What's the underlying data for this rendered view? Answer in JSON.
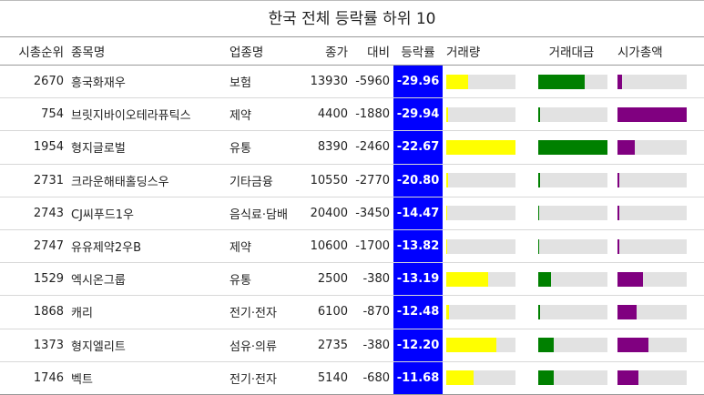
{
  "chart_data": {
    "type": "table",
    "title": "한국 전체 등락률 하위 10",
    "columns": [
      "시총순위",
      "종목명",
      "업종명",
      "종가",
      "대비",
      "등락률",
      "거래량",
      "거래대금",
      "시가총액"
    ],
    "bar_colors": {
      "volume": "#ffff00",
      "amount": "#008000",
      "cap": "#800080"
    },
    "change_bg": "#0000ff",
    "rows": [
      {
        "rank": "2670",
        "name": "흥국화재우",
        "sector": "보험",
        "close": "13930",
        "diff": "-5960",
        "rate": "-29.96",
        "volume": 0.32,
        "amount": 0.67,
        "cap": 0.06
      },
      {
        "rank": "754",
        "name": "브릿지바이오테라퓨틱스",
        "sector": "제약",
        "close": "4400",
        "diff": "-1880",
        "rate": "-29.94",
        "volume": 0.02,
        "amount": 0.02,
        "cap": 1.0
      },
      {
        "rank": "1954",
        "name": "형지글로벌",
        "sector": "유통",
        "close": "8390",
        "diff": "-2460",
        "rate": "-22.67",
        "volume": 1.0,
        "amount": 1.0,
        "cap": 0.25
      },
      {
        "rank": "2731",
        "name": "크라운해태홀딩스우",
        "sector": "기타금융",
        "close": "10550",
        "diff": "-2770",
        "rate": "-20.80",
        "volume": 0.02,
        "amount": 0.03,
        "cap": 0.03
      },
      {
        "rank": "2743",
        "name": "CJ씨푸드1우",
        "sector": "음식료·담배",
        "close": "20400",
        "diff": "-3450",
        "rate": "-14.47",
        "volume": 0.01,
        "amount": 0.01,
        "cap": 0.02
      },
      {
        "rank": "2747",
        "name": "유유제약2우B",
        "sector": "제약",
        "close": "10600",
        "diff": "-1700",
        "rate": "-13.82",
        "volume": 0.01,
        "amount": 0.01,
        "cap": 0.02
      },
      {
        "rank": "1529",
        "name": "엑시온그룹",
        "sector": "유통",
        "close": "2500",
        "diff": "-380",
        "rate": "-13.19",
        "volume": 0.6,
        "amount": 0.18,
        "cap": 0.37
      },
      {
        "rank": "1868",
        "name": "캐리",
        "sector": "전기·전자",
        "close": "6100",
        "diff": "-870",
        "rate": "-12.48",
        "volume": 0.04,
        "amount": 0.03,
        "cap": 0.27
      },
      {
        "rank": "1373",
        "name": "형지엘리트",
        "sector": "섬유·의류",
        "close": "2735",
        "diff": "-380",
        "rate": "-12.20",
        "volume": 0.72,
        "amount": 0.22,
        "cap": 0.45
      },
      {
        "rank": "1746",
        "name": "벡트",
        "sector": "전기·전자",
        "close": "5140",
        "diff": "-680",
        "rate": "-11.68",
        "volume": 0.4,
        "amount": 0.22,
        "cap": 0.3
      }
    ]
  }
}
